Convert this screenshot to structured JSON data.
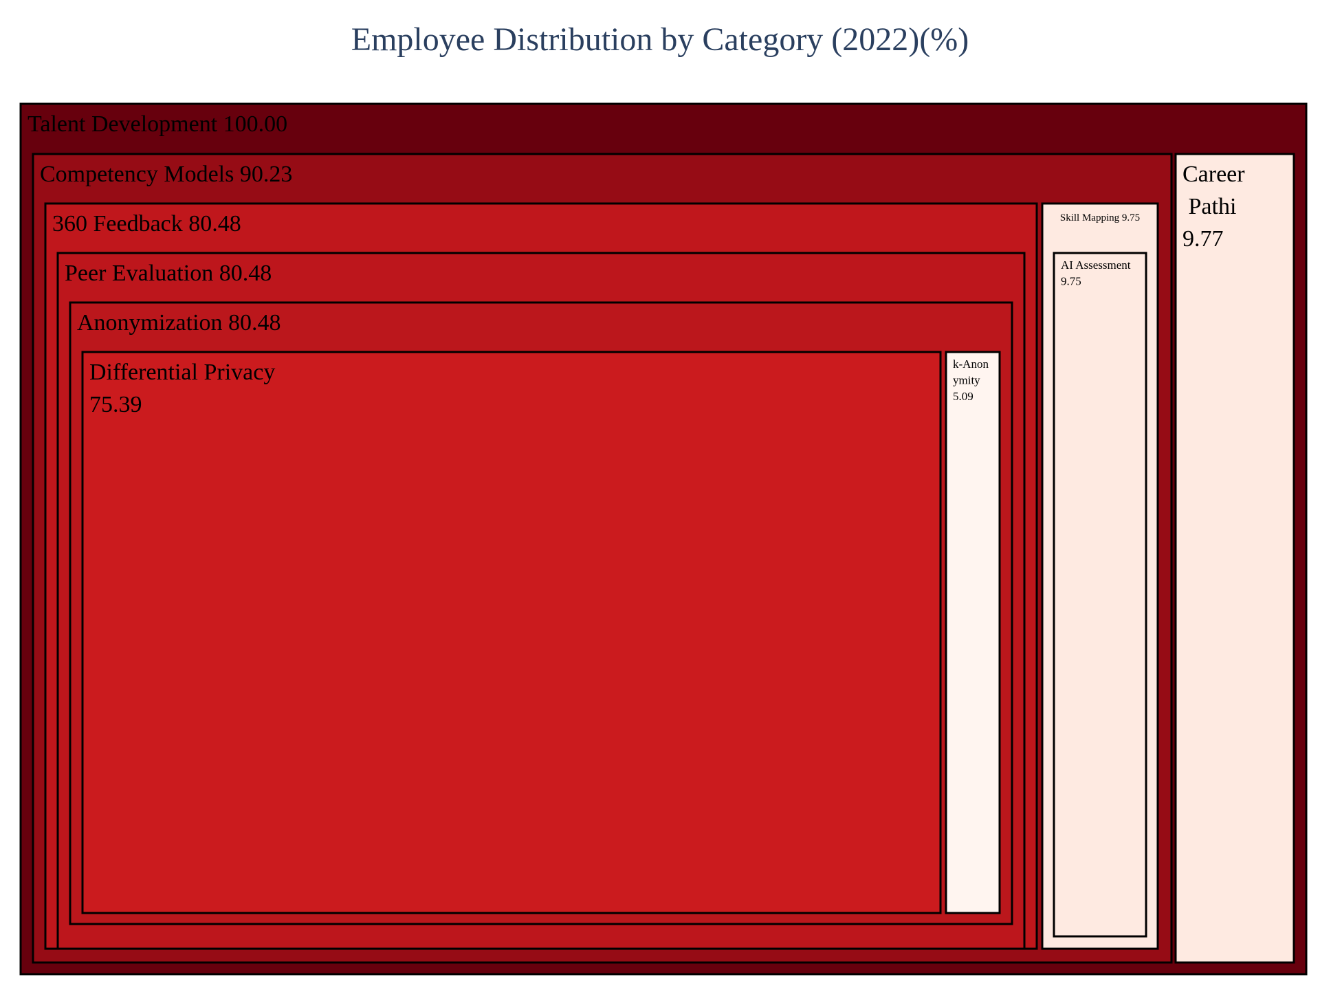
{
  "chart_data": {
    "type": "treemap",
    "title": "Employee Distribution by Category (2022)(%)",
    "nodes": [
      {
        "id": "td",
        "label": "Talent Development",
        "value": "100.00",
        "color": "#67000d"
      },
      {
        "id": "cm",
        "label": "Competency Models",
        "value": "90.23",
        "color": "#960c15"
      },
      {
        "id": "fb",
        "label": "360 Feedback",
        "value": "80.48",
        "color": "#c0171c"
      },
      {
        "id": "pe",
        "label": "Peer Evaluation",
        "value": "80.48",
        "color": "#bd161c"
      },
      {
        "id": "an",
        "label": "Anonymization",
        "value": "80.48",
        "color": "#bb171c"
      },
      {
        "id": "dp",
        "label": "Differential Privacy",
        "value": "75.39",
        "color": "#cb1b1e"
      },
      {
        "id": "ka",
        "label": "k-Anonymity",
        "value": "5.09",
        "color": "#fff5f0"
      },
      {
        "id": "sm",
        "label": "Skill Mapping",
        "value": "9.75",
        "color": "#feeae1"
      },
      {
        "id": "ai",
        "label": "AI Assessment",
        "value": "9.75",
        "color": "#feeae1"
      },
      {
        "id": "cp",
        "label": "Career Pathi",
        "value": "9.77",
        "color": "#feeae1"
      }
    ]
  }
}
